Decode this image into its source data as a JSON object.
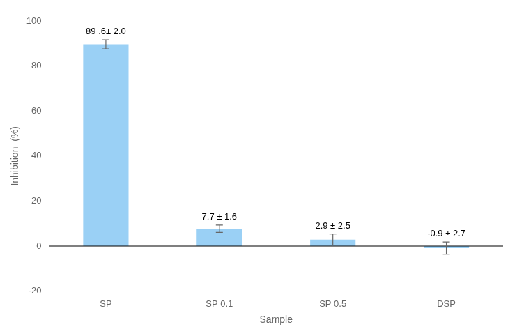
{
  "chart_data": {
    "type": "bar",
    "categories": [
      "SP",
      "SP 0.1",
      "SP 0.5",
      "DSP"
    ],
    "values": [
      89.6,
      7.7,
      2.9,
      -0.9
    ],
    "errors": [
      2.0,
      1.6,
      2.5,
      2.7
    ],
    "value_labels": [
      "89 .6± 2.0",
      "7.7 ± 1.6",
      "2.9 ± 2.5",
      "-0.9 ± 2.7"
    ],
    "data_labels": true,
    "xlabel": "Sample",
    "ylabel": "Inhibition  (%)",
    "ylim": [
      -20,
      100
    ],
    "yticks": [
      -20,
      0,
      20,
      40,
      60,
      80,
      100
    ],
    "grid": false
  }
}
